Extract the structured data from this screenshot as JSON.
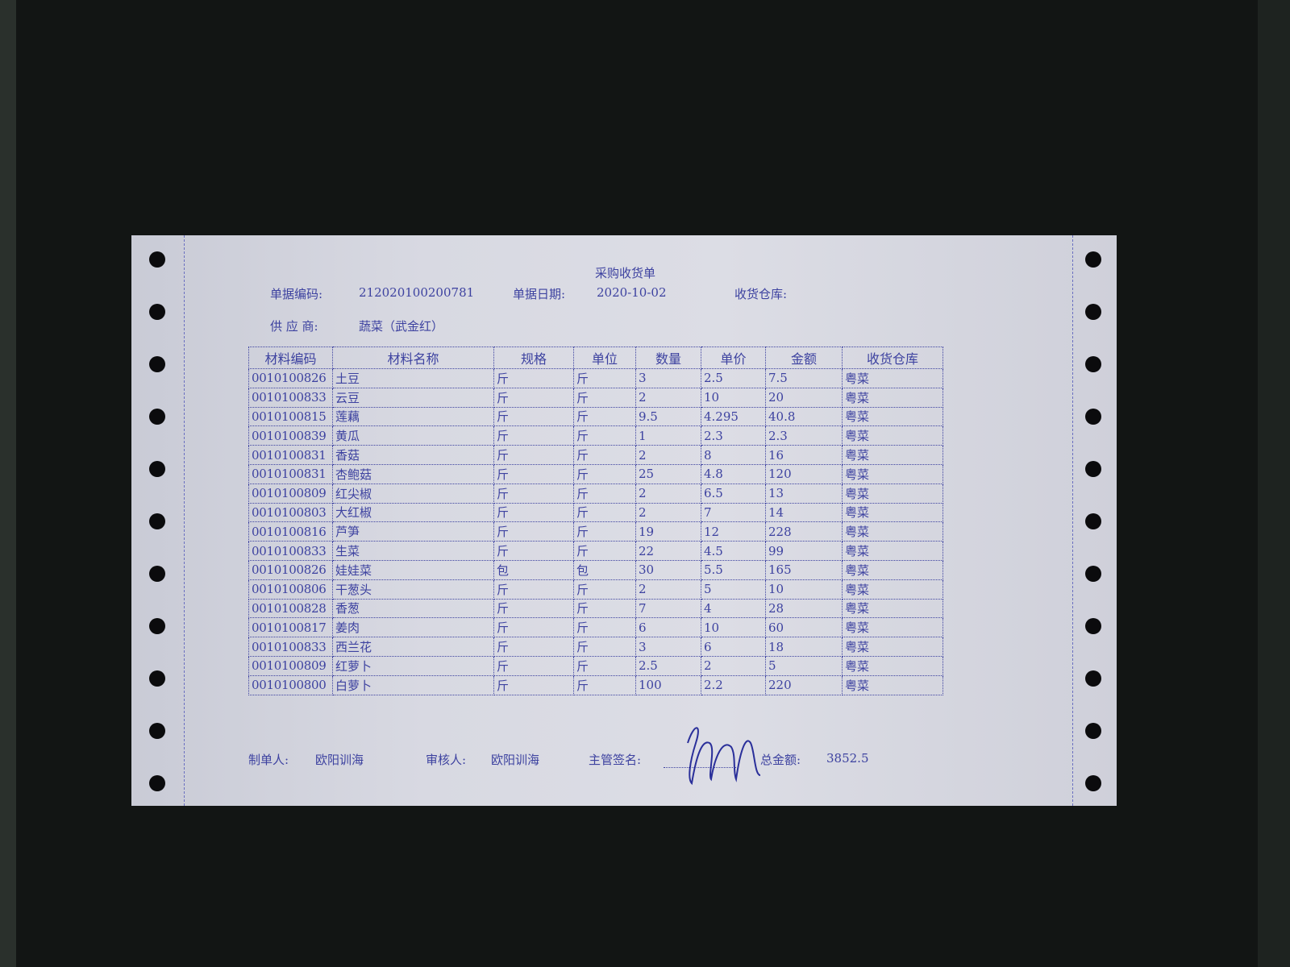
{
  "document": {
    "title": "采购收货单",
    "doc_no_label": "单据编码:",
    "doc_no": "212020100200781",
    "date_label": "单据日期:",
    "date": "2020-10-02",
    "warehouse_label": "收货仓库:",
    "supplier_label": "供 应 商:",
    "supplier": "蔬菜（武金红）"
  },
  "table": {
    "headers": [
      "材料编码",
      "材料名称",
      "规格",
      "单位",
      "数量",
      "单价",
      "金额",
      "收货仓库"
    ],
    "rows": [
      [
        "0010100826",
        "土豆",
        "斤",
        "斤",
        "3",
        "2.5",
        "7.5",
        "粤菜"
      ],
      [
        "0010100833",
        "云豆",
        "斤",
        "斤",
        "2",
        "10",
        "20",
        "粤菜"
      ],
      [
        "0010100815",
        "莲藕",
        "斤",
        "斤",
        "9.5",
        "4.295",
        "40.8",
        "粤菜"
      ],
      [
        "0010100839",
        "黄瓜",
        "斤",
        "斤",
        "1",
        "2.3",
        "2.3",
        "粤菜"
      ],
      [
        "0010100831",
        "香菇",
        "斤",
        "斤",
        "2",
        "8",
        "16",
        "粤菜"
      ],
      [
        "0010100831",
        "杏鲍菇",
        "斤",
        "斤",
        "25",
        "4.8",
        "120",
        "粤菜"
      ],
      [
        "0010100809",
        "红尖椒",
        "斤",
        "斤",
        "2",
        "6.5",
        "13",
        "粤菜"
      ],
      [
        "0010100803",
        "大红椒",
        "斤",
        "斤",
        "2",
        "7",
        "14",
        "粤菜"
      ],
      [
        "0010100816",
        "芦笋",
        "斤",
        "斤",
        "19",
        "12",
        "228",
        "粤菜"
      ],
      [
        "0010100833",
        "生菜",
        "斤",
        "斤",
        "22",
        "4.5",
        "99",
        "粤菜"
      ],
      [
        "0010100826",
        "娃娃菜",
        "包",
        "包",
        "30",
        "5.5",
        "165",
        "粤菜"
      ],
      [
        "0010100806",
        "干葱头",
        "斤",
        "斤",
        "2",
        "5",
        "10",
        "粤菜"
      ],
      [
        "0010100828",
        "香葱",
        "斤",
        "斤",
        "7",
        "4",
        "28",
        "粤菜"
      ],
      [
        "0010100817",
        "姜肉",
        "斤",
        "斤",
        "6",
        "10",
        "60",
        "粤菜"
      ],
      [
        "0010100833",
        "西兰花",
        "斤",
        "斤",
        "3",
        "6",
        "18",
        "粤菜"
      ],
      [
        "0010100809",
        "红萝卜",
        "斤",
        "斤",
        "2.5",
        "2",
        "5",
        "粤菜"
      ],
      [
        "0010100800",
        "白萝卜",
        "斤",
        "斤",
        "100",
        "2.2",
        "220",
        "粤菜"
      ]
    ]
  },
  "footer": {
    "maker_label": "制单人:",
    "maker": "欧阳训海",
    "reviewer_label": "审核人:",
    "reviewer": "欧阳训海",
    "supervisor_label": "主管签名:",
    "total_label": "总金额:",
    "total": "3852.5"
  },
  "colors": {
    "print_ink": "#3d42a0",
    "pen_ink": "#2a2f9a",
    "paper": "#d8d9e2"
  }
}
